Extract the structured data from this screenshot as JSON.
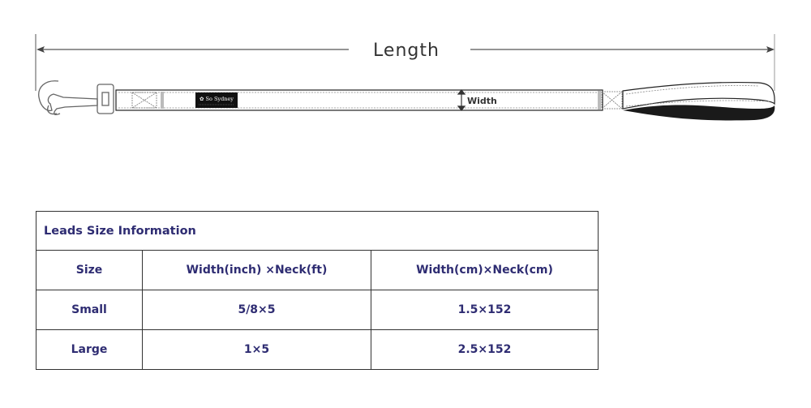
{
  "diagram": {
    "length_label": "Length",
    "width_label": "Width",
    "brand_logo": "So Sydney"
  },
  "table": {
    "title": "Leads Size Information",
    "headers": [
      "Size",
      "Width(inch) ×Neck(ft)",
      "Width(cm)×Neck(cm)"
    ],
    "rows": [
      [
        "Small",
        "5/8×5",
        "1.5×152"
      ],
      [
        "Large",
        "1×5",
        "2.5×152"
      ]
    ]
  }
}
